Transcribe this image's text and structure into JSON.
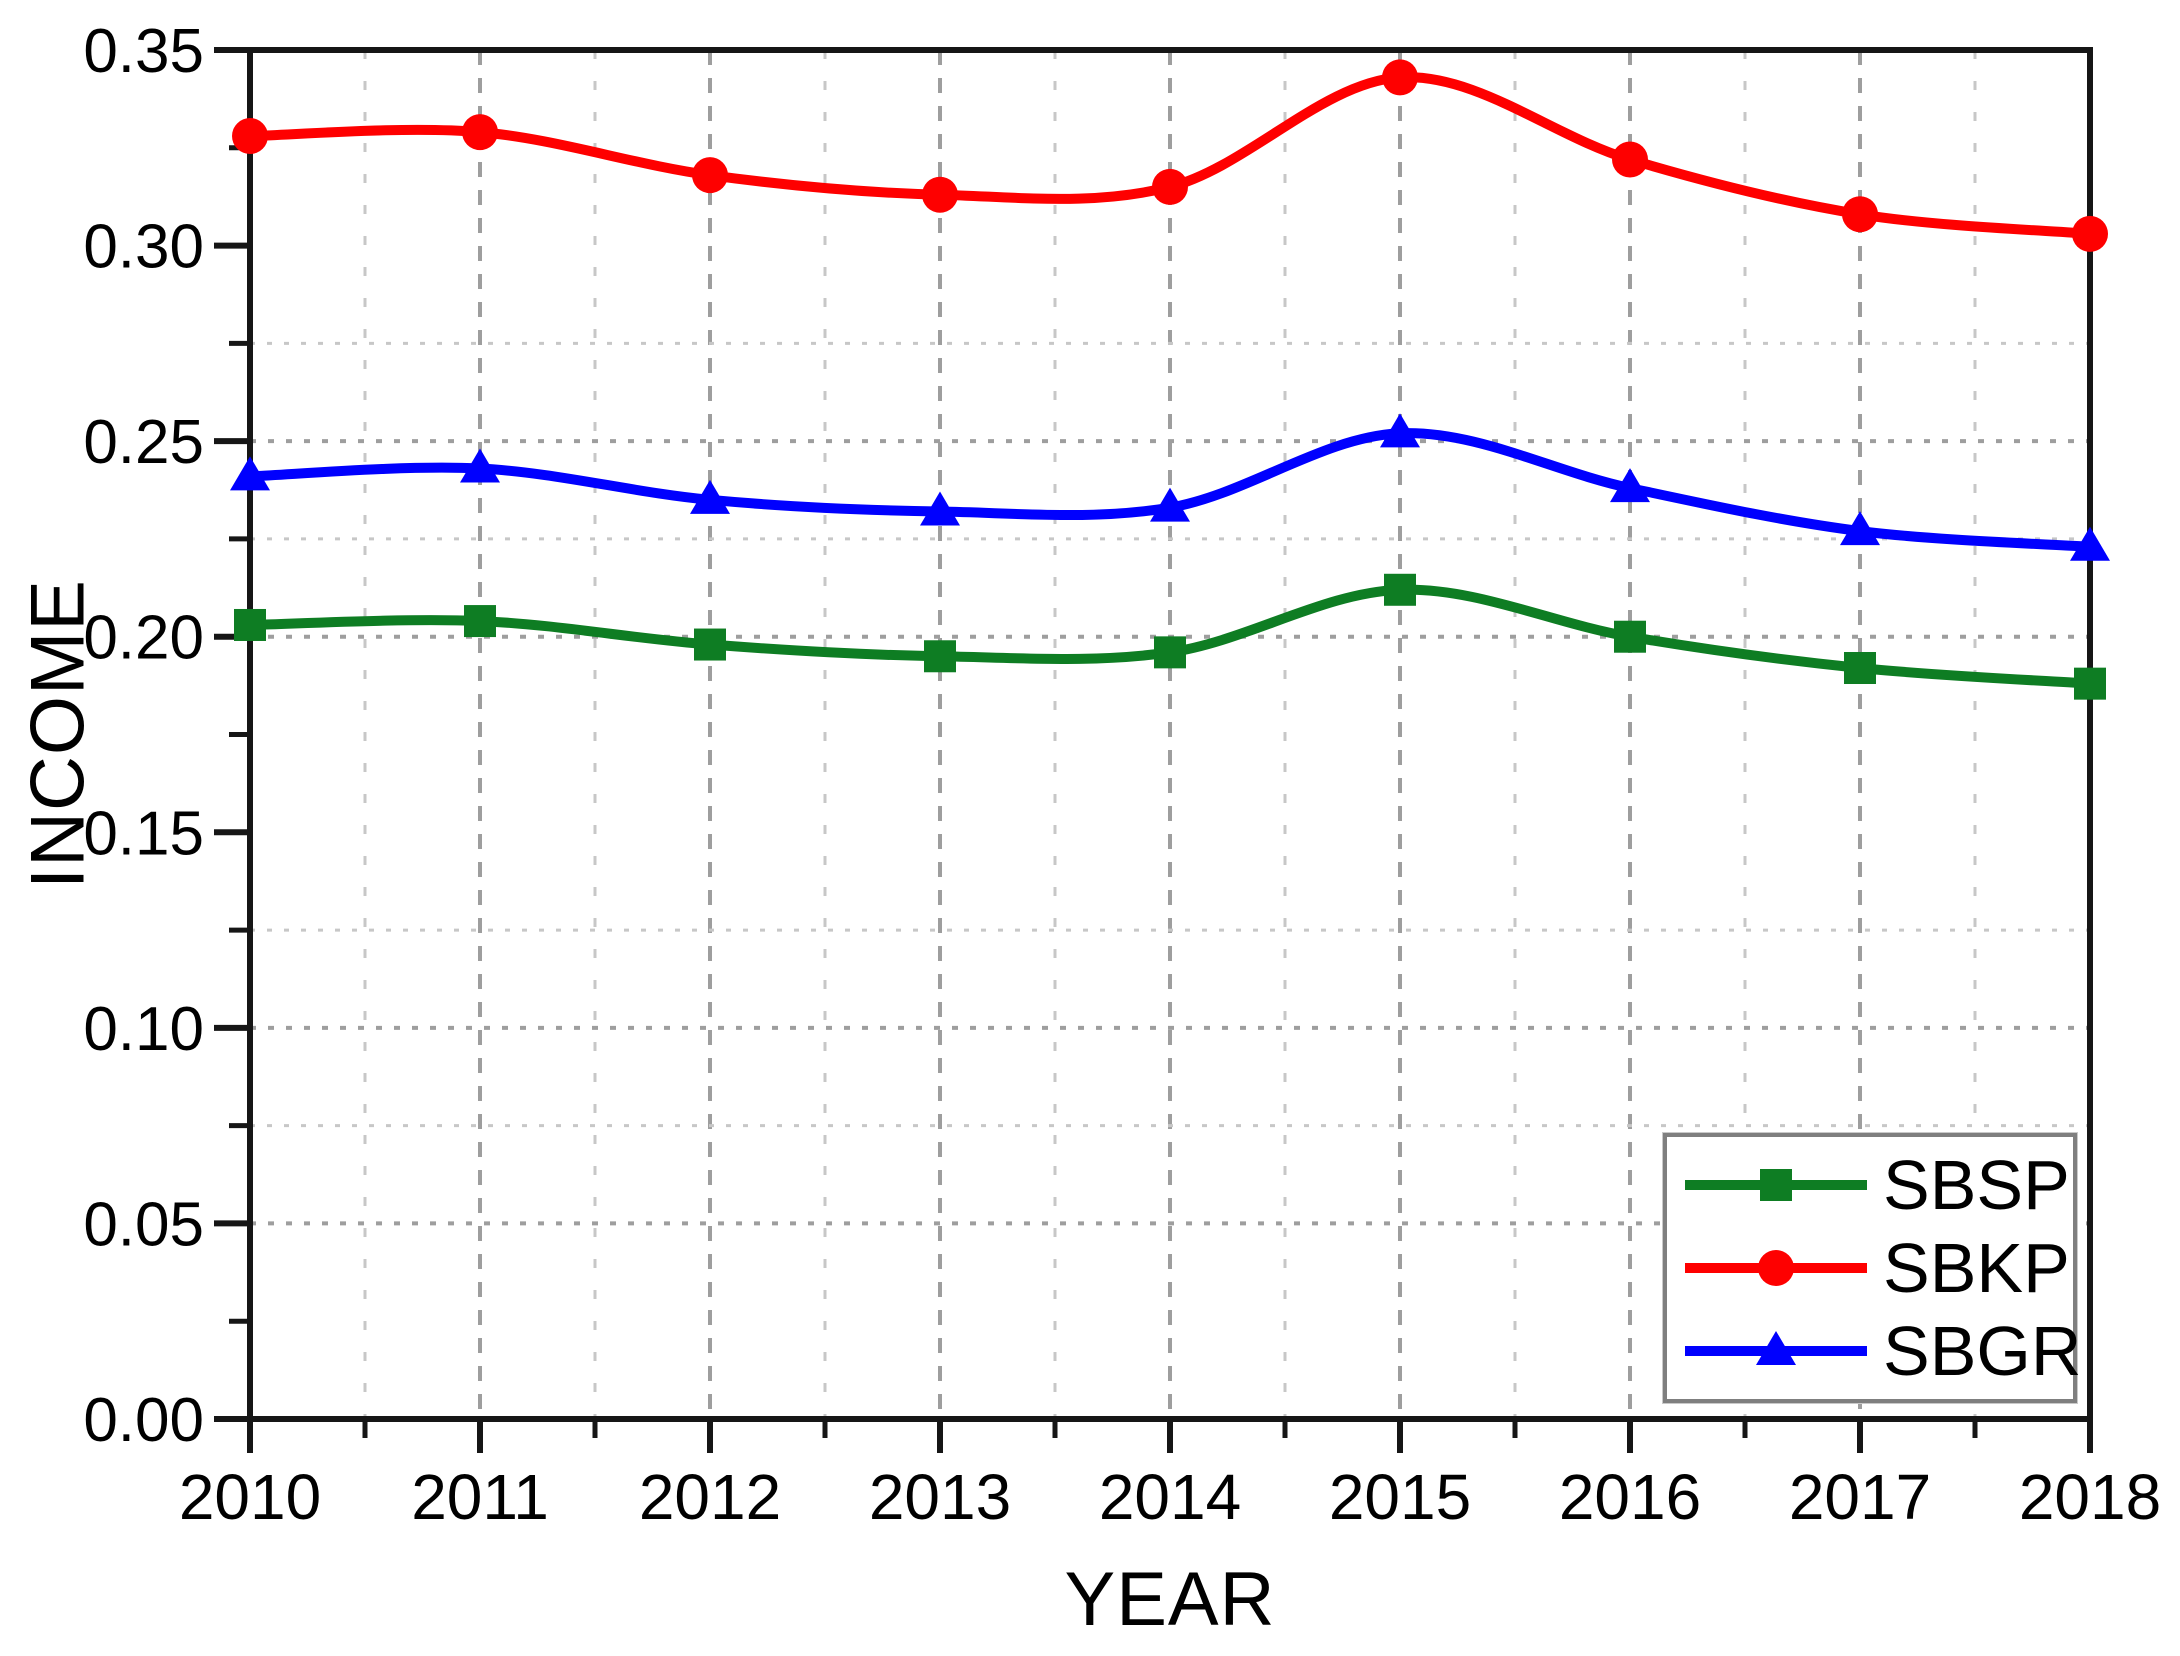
{
  "chart_data": {
    "type": "line",
    "title": "",
    "xlabel": "YEAR",
    "ylabel": "INCOME",
    "x": [
      2010,
      2011,
      2012,
      2013,
      2014,
      2015,
      2016,
      2017,
      2018
    ],
    "xlim": [
      2010,
      2018
    ],
    "ylim": [
      0,
      0.35
    ],
    "x_tick_labels": [
      "2010",
      "2011",
      "2012",
      "2013",
      "2014",
      "2015",
      "2016",
      "2017",
      "2018"
    ],
    "x_minor_ticks": [
      2010.5,
      2011.5,
      2012.5,
      2013.5,
      2014.5,
      2015.5,
      2016.5,
      2017.5
    ],
    "y_tick_values": [
      0.0,
      0.05,
      0.1,
      0.15,
      0.2,
      0.25,
      0.3,
      0.35
    ],
    "y_tick_labels": [
      "0.00",
      "0.05",
      "0.10",
      "0.15",
      "0.20",
      "0.25",
      "0.30",
      "0.35"
    ],
    "y_minor_ticks": [
      0.025,
      0.075,
      0.125,
      0.175,
      0.225,
      0.275,
      0.325
    ],
    "grid": {
      "h_major_lines": [
        0.05,
        0.1,
        0.2,
        0.25
      ],
      "h_minor_lines": [
        0.075,
        0.125,
        0.225,
        0.275
      ],
      "v_major_lines": [
        2011,
        2012,
        2013,
        2014,
        2015,
        2016,
        2017
      ],
      "v_minor_lines": [
        2010.5,
        2011.5,
        2012.5,
        2013.5,
        2014.5,
        2015.5,
        2016.5,
        2017.5
      ]
    },
    "series": [
      {
        "name": "SBSP",
        "color": "#0e7d23",
        "marker": "square",
        "values": [
          0.203,
          0.204,
          0.198,
          0.195,
          0.196,
          0.212,
          0.2,
          0.192,
          0.188
        ]
      },
      {
        "name": "SBKP",
        "color": "#fe0000",
        "marker": "circle",
        "values": [
          0.328,
          0.329,
          0.318,
          0.313,
          0.315,
          0.343,
          0.322,
          0.308,
          0.303
        ]
      },
      {
        "name": "SBGR",
        "color": "#0000fe",
        "marker": "triangle",
        "values": [
          0.241,
          0.243,
          0.235,
          0.232,
          0.233,
          0.252,
          0.238,
          0.227,
          0.223
        ]
      }
    ],
    "legend_position": "bottom-right",
    "colors": {
      "axis": "#161616",
      "grid_major": "#9e9e9e",
      "grid_minor": "#c7c7c7",
      "text": "#000000"
    }
  }
}
